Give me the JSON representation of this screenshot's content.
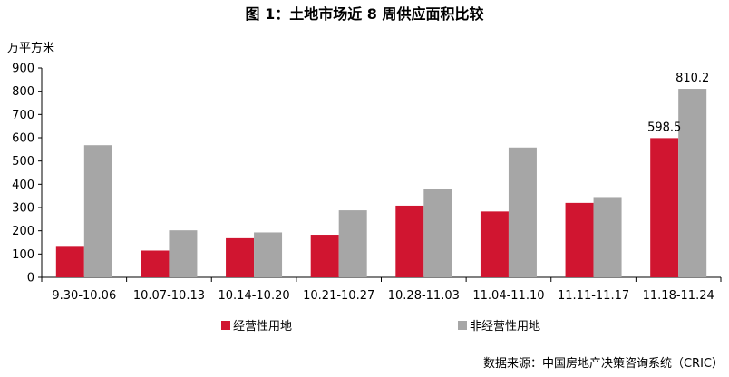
{
  "chart_data": {
    "type": "bar",
    "title": "图 1：土地市场近 8 周供应面积比较",
    "ylabel": "万平方米",
    "xlabel": "",
    "ylim": [
      0,
      900
    ],
    "yticks": [
      0,
      100,
      200,
      300,
      400,
      500,
      600,
      700,
      800,
      900
    ],
    "categories": [
      "9.30-10.06",
      "10.07-10.13",
      "10.14-10.20",
      "10.21-10.27",
      "10.28-11.03",
      "11.04-11.10",
      "11.11-11.17",
      "11.18-11.24"
    ],
    "series": [
      {
        "name": "经营性用地",
        "color": "#d01530",
        "values": [
          135,
          115,
          168,
          183,
          308,
          283,
          320,
          598.5
        ]
      },
      {
        "name": "非经营性用地",
        "color": "#a6a6a6",
        "values": [
          568,
          202,
          193,
          288,
          378,
          558,
          345,
          810.2
        ]
      }
    ],
    "data_labels": [
      {
        "series": 0,
        "index": 7,
        "text": "598.5"
      },
      {
        "series": 1,
        "index": 7,
        "text": "810.2"
      }
    ],
    "grid": false,
    "legend": "bottom",
    "source": "数据来源：中国房地产决策咨询系统（CRIC）"
  }
}
